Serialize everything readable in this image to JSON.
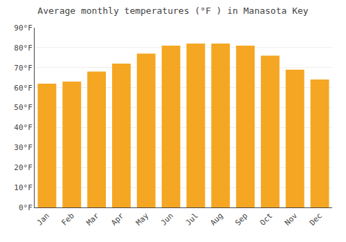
{
  "chart_data": {
    "type": "bar",
    "title": "Average monthly temperatures (°F ) in Manasota Key",
    "categories": [
      "Jan",
      "Feb",
      "Mar",
      "Apr",
      "May",
      "Jun",
      "Jul",
      "Aug",
      "Sep",
      "Oct",
      "Nov",
      "Dec"
    ],
    "values": [
      62,
      63,
      68,
      72,
      77,
      81,
      82,
      82,
      81,
      76,
      69,
      64
    ],
    "color": "#F5A623",
    "ylim": [
      0,
      90
    ],
    "yticks": [
      {
        "value": 0,
        "label": "0°F"
      },
      {
        "value": 10,
        "label": "10°F"
      },
      {
        "value": 20,
        "label": "20°F"
      },
      {
        "value": 30,
        "label": "30°F"
      },
      {
        "value": 40,
        "label": "40°F"
      },
      {
        "value": 50,
        "label": "50°F"
      },
      {
        "value": 60,
        "label": "60°F"
      },
      {
        "value": 70,
        "label": "70°F"
      },
      {
        "value": 80,
        "label": "80°F"
      },
      {
        "value": 90,
        "label": "90°F"
      }
    ],
    "grid": true
  }
}
